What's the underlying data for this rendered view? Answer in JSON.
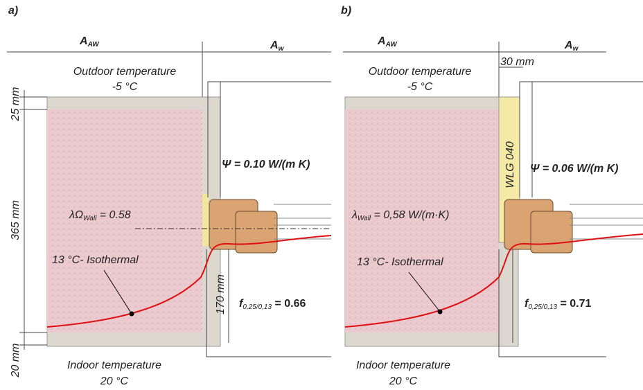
{
  "panels": [
    {
      "label": "a)",
      "area_wall": {
        "symbol": "A",
        "subscript": "AW"
      },
      "area_window": {
        "symbol": "A",
        "subscript": "w"
      },
      "outdoor": {
        "title": "Outdoor temperature",
        "value": "-5 °C"
      },
      "dimensions": [
        "25 mm",
        "365 mm",
        "20 mm",
        "170 mm"
      ],
      "psi": "Ψ = 0.10 W/(m K)",
      "lambda": {
        "symbol": "λΩ",
        "subscript": "Wall",
        "rest": " = 0.58"
      },
      "isotherm": "13 °C- Isothermal",
      "f": {
        "symbol": "f",
        "subscript": "0,25/0,13",
        "rest": " = 0.66"
      },
      "indoor": {
        "title": "Indoor temperature",
        "value": "20 °C"
      }
    },
    {
      "label": "b)",
      "area_wall": {
        "symbol": "A",
        "subscript": "AW"
      },
      "area_window": {
        "symbol": "A",
        "subscript": "w"
      },
      "outdoor": {
        "title": "Outdoor temperature",
        "value": "-5 °C"
      },
      "dimensions": [
        "30 mm"
      ],
      "insulation": "WLG 040",
      "psi": "Ψ =  0.06 W/(m K)",
      "lambda": {
        "symbol": "λ",
        "subscript": "Wall",
        "rest": " = 0,58 W/(m·K)"
      },
      "isotherm": "13 °C- Isothermal",
      "f": {
        "symbol": "f",
        "subscript": "0,25/0,13",
        "rest": " = 0.71"
      },
      "indoor": {
        "title": "Indoor temperature",
        "value": "20 °C"
      }
    }
  ]
}
